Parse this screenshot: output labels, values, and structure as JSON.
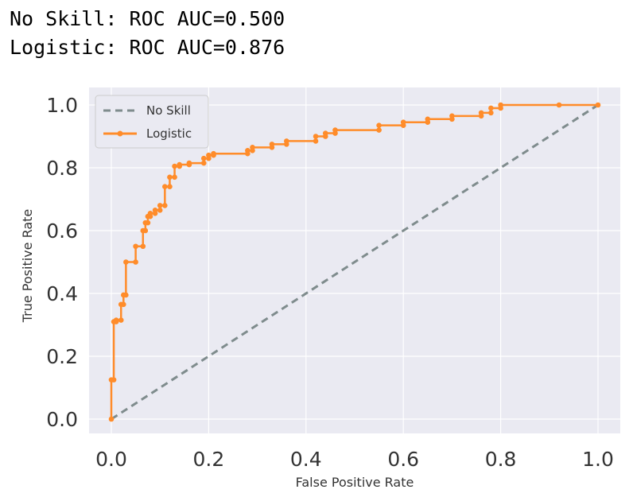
{
  "console": {
    "line1": "No Skill: ROC AUC=0.500",
    "line2": "Logistic: ROC AUC=0.876"
  },
  "chart_data": {
    "type": "line",
    "xlabel": "False Positive Rate",
    "ylabel": "True Positive Rate",
    "xlim": [
      0.0,
      1.0
    ],
    "ylim": [
      0.0,
      1.0
    ],
    "xticks": [
      "0.0",
      "0.2",
      "0.4",
      "0.6",
      "0.8",
      "1.0"
    ],
    "yticks": [
      "0.0",
      "0.2",
      "0.4",
      "0.6",
      "0.8",
      "1.0"
    ],
    "grid": true,
    "legend": "top-left",
    "colors": {
      "background": "#eaeaf2",
      "grid": "#ffffff",
      "no_skill": "#7f8c8d",
      "logistic": "#ff8c2a"
    },
    "series": [
      {
        "name": "No Skill",
        "style": "dashed",
        "x": [
          0.0,
          1.0
        ],
        "y": [
          0.0,
          1.0
        ]
      },
      {
        "name": "Logistic",
        "style": "solid-marker",
        "x": [
          0.0,
          0.0,
          0.005,
          0.005,
          0.01,
          0.01,
          0.02,
          0.02,
          0.025,
          0.025,
          0.03,
          0.03,
          0.05,
          0.05,
          0.065,
          0.065,
          0.07,
          0.07,
          0.075,
          0.075,
          0.08,
          0.08,
          0.09,
          0.09,
          0.1,
          0.1,
          0.11,
          0.11,
          0.12,
          0.12,
          0.13,
          0.13,
          0.14,
          0.14,
          0.16,
          0.16,
          0.19,
          0.19,
          0.2,
          0.2,
          0.21,
          0.21,
          0.28,
          0.28,
          0.29,
          0.29,
          0.33,
          0.33,
          0.36,
          0.36,
          0.42,
          0.42,
          0.44,
          0.44,
          0.46,
          0.46,
          0.55,
          0.55,
          0.6,
          0.6,
          0.65,
          0.65,
          0.7,
          0.7,
          0.76,
          0.76,
          0.78,
          0.78,
          0.8,
          0.8,
          0.92,
          1.0
        ],
        "y": [
          0.0,
          0.125,
          0.125,
          0.31,
          0.31,
          0.315,
          0.315,
          0.365,
          0.365,
          0.395,
          0.395,
          0.5,
          0.5,
          0.55,
          0.55,
          0.6,
          0.6,
          0.625,
          0.625,
          0.645,
          0.645,
          0.655,
          0.655,
          0.665,
          0.665,
          0.68,
          0.68,
          0.74,
          0.74,
          0.77,
          0.77,
          0.805,
          0.805,
          0.81,
          0.81,
          0.815,
          0.815,
          0.83,
          0.83,
          0.84,
          0.84,
          0.845,
          0.845,
          0.855,
          0.855,
          0.865,
          0.865,
          0.875,
          0.875,
          0.885,
          0.885,
          0.9,
          0.9,
          0.91,
          0.91,
          0.92,
          0.92,
          0.935,
          0.935,
          0.945,
          0.945,
          0.955,
          0.955,
          0.965,
          0.965,
          0.975,
          0.975,
          0.99,
          0.99,
          1.0,
          1.0,
          1.0
        ]
      }
    ]
  }
}
